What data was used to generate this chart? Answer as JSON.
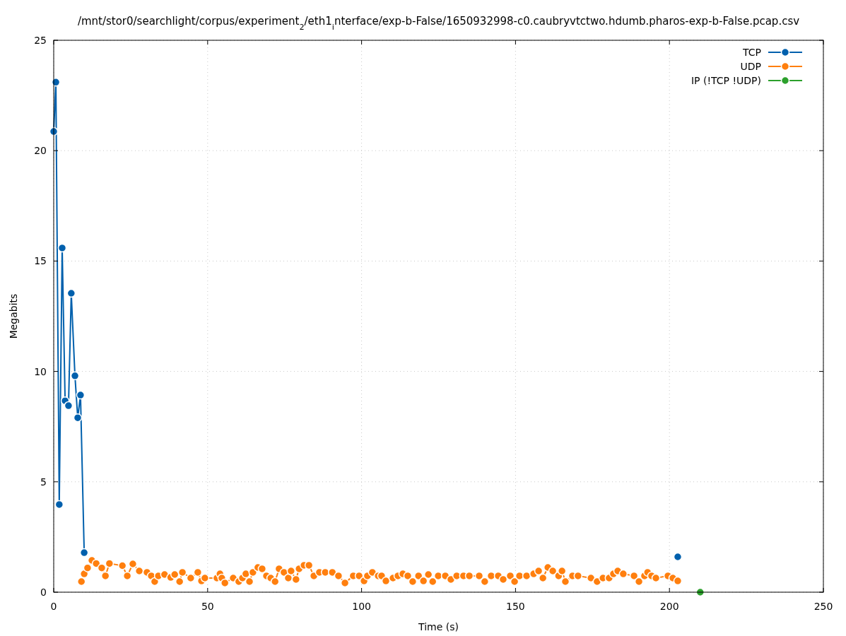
{
  "chart_data": {
    "type": "line",
    "title": "/mnt/stor0/searchlight/corpus/experiment$_{2}$/eth1$_{i}$nterface/exp-b-False/1650932998-c0.caubryvtctwo.hdumb.pharos-exp-b-False.pcap.csv",
    "xlabel": "Time (s)",
    "ylabel": "Megabits",
    "xlim": [
      0,
      250
    ],
    "xticks": [
      0,
      50,
      100,
      150,
      200,
      250
    ],
    "ylim": [
      0,
      25
    ],
    "yticks": [
      0,
      5,
      10,
      15,
      20,
      25
    ],
    "grid": true,
    "legend": "top right",
    "marker": "circle",
    "line_style": "solid",
    "series": [
      {
        "name": "TCP",
        "color": "#0060ad",
        "x": [
          0,
          0.7,
          1.8,
          2.75,
          3.7,
          4.8,
          5.7,
          6.9,
          7.8,
          8.7,
          9.9,
          100,
          202.7
        ],
        "values": [
          20.87,
          23.1,
          3.97,
          15.59,
          8.67,
          8.45,
          13.54,
          9.8,
          7.9,
          8.93,
          1.79,
          null,
          1.6
        ]
      },
      {
        "name": "UDP",
        "color": "#ff7f0e",
        "x": [
          9,
          9.9,
          11,
          12.4,
          13.8,
          15.6,
          16.8,
          18.1,
          22.3,
          23.9,
          25.7,
          27.8,
          30.3,
          31.7,
          32.8,
          34,
          36,
          38,
          39.3,
          40.9,
          41.8,
          44.5,
          46.8,
          48,
          49.1,
          53,
          54,
          54.6,
          55.6,
          58.3,
          60.1,
          61.3,
          62.4,
          63.6,
          64.7,
          66.3,
          67.7,
          69.1,
          70.5,
          71.9,
          73.2,
          74.8,
          76.2,
          77.1,
          78.7,
          79.7,
          81.3,
          82.9,
          84.5,
          86.3,
          88.2,
          90.5,
          92.5,
          94.6,
          97.3,
          99.2,
          100.8,
          101.9,
          103.5,
          105.4,
          106.5,
          107.9,
          110.2,
          111.8,
          113.4,
          115,
          116.6,
          118.5,
          120.1,
          121.7,
          123.1,
          124.9,
          127.2,
          129,
          130.9,
          133.1,
          135,
          138.2,
          140,
          142.1,
          144.4,
          146,
          148.3,
          149.7,
          151.3,
          153.6,
          155.9,
          157.5,
          158.9,
          160.5,
          162.1,
          164,
          165.1,
          166.2,
          168.5,
          170.3,
          174.5,
          176.5,
          178.4,
          180.4,
          181.8,
          183.2,
          185,
          188.5,
          190.1,
          191.9,
          192.9,
          194.2,
          195.6,
          199.5,
          201.1,
          202.7
        ],
        "values": [
          0.48,
          0.83,
          1.1,
          1.44,
          1.3,
          1.1,
          0.74,
          1.3,
          1.2,
          0.74,
          1.28,
          0.96,
          0.9,
          0.74,
          0.48,
          0.74,
          0.8,
          0.67,
          0.8,
          0.48,
          0.9,
          0.64,
          0.9,
          0.51,
          0.64,
          0.64,
          0.83,
          0.64,
          0.42,
          0.64,
          0.48,
          0.64,
          0.83,
          0.48,
          0.9,
          1.12,
          1.06,
          0.74,
          0.64,
          0.48,
          1.06,
          0.9,
          0.64,
          0.96,
          0.58,
          1.06,
          1.22,
          1.22,
          0.74,
          0.9,
          0.9,
          0.9,
          0.74,
          0.42,
          0.74,
          0.74,
          0.51,
          0.74,
          0.9,
          0.74,
          0.74,
          0.51,
          0.64,
          0.74,
          0.83,
          0.74,
          0.48,
          0.74,
          0.51,
          0.8,
          0.48,
          0.74,
          0.74,
          0.58,
          0.74,
          0.74,
          0.74,
          0.74,
          0.48,
          0.74,
          0.74,
          0.58,
          0.74,
          0.48,
          0.74,
          0.74,
          0.83,
          0.96,
          0.64,
          1.12,
          0.96,
          0.74,
          0.96,
          0.48,
          0.74,
          0.74,
          0.64,
          0.48,
          0.64,
          0.64,
          0.83,
          0.96,
          0.83,
          0.74,
          0.48,
          0.74,
          0.9,
          0.74,
          0.64,
          0.74,
          0.64,
          0.51
        ]
      },
      {
        "name": "IP (!TCP  !UDP)",
        "color": "#2ca02c",
        "x": [
          210
        ],
        "values": [
          0
        ]
      }
    ]
  }
}
